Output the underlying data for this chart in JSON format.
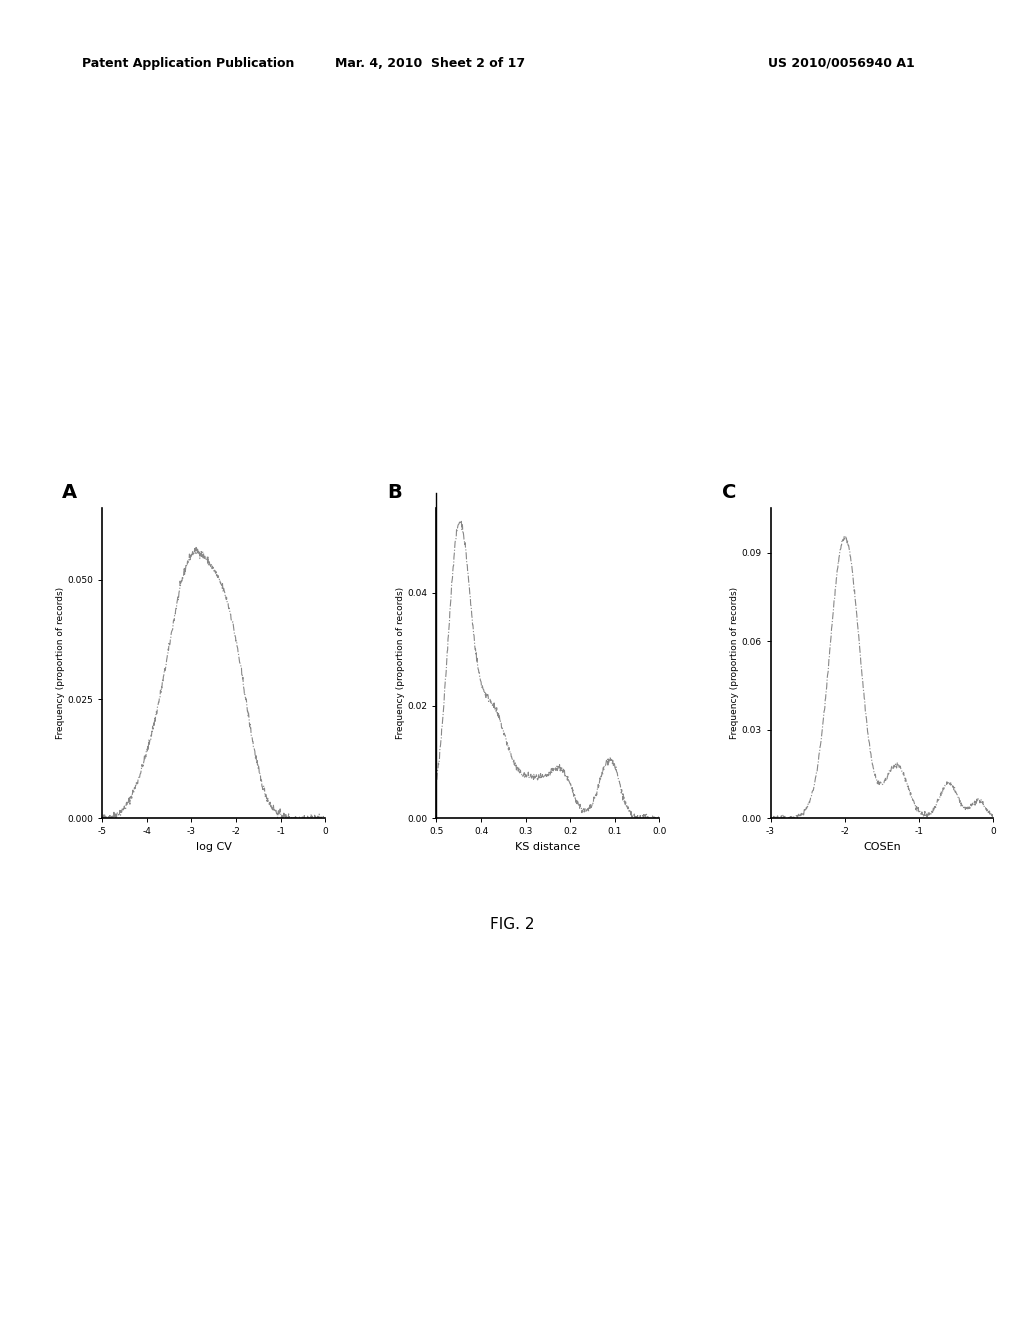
{
  "title_text": "FIG. 2",
  "header_left": "Patent Application Publication",
  "header_mid": "Mar. 4, 2010  Sheet 2 of 17",
  "header_right": "US 2010/0056940 A1",
  "panel_labels": [
    "A",
    "B",
    "C"
  ],
  "panel_A": {
    "xlabel": "log CV",
    "ylabel": "Frequency (proportion of records)",
    "xlim": [
      -5,
      0
    ],
    "ylim": [
      0,
      0.065
    ],
    "xticks": [
      -5,
      -4,
      -3,
      -2,
      -1,
      0
    ],
    "yticks": [
      0.0,
      0.025,
      0.05
    ],
    "ytick_labels": [
      "0.000",
      "0.025",
      "0.050"
    ]
  },
  "panel_B": {
    "xlabel": "KS distance",
    "ylabel": "Frequency (proportion of records)",
    "xlim": [
      0.5,
      0.0
    ],
    "ylim": [
      0,
      0.055
    ],
    "xticks": [
      0.5,
      0.4,
      0.3,
      0.2,
      0.1,
      0.0
    ],
    "yticks": [
      0.0,
      0.02,
      0.04
    ],
    "ytick_labels": [
      "0.00",
      "0.02",
      "0.04"
    ]
  },
  "panel_C": {
    "xlabel": "COSEn",
    "ylabel": "Frequency (proportion of records)",
    "xlim": [
      -3,
      0
    ],
    "ylim": [
      0,
      0.105
    ],
    "xticks": [
      -3,
      -2,
      -1,
      0
    ],
    "yticks": [
      0.0,
      0.03,
      0.06,
      0.09
    ],
    "ytick_labels": [
      "0.00",
      "0.03",
      "0.06",
      "0.09"
    ]
  },
  "line_color": "#888888",
  "line_width": 0.8,
  "background_color": "#ffffff"
}
